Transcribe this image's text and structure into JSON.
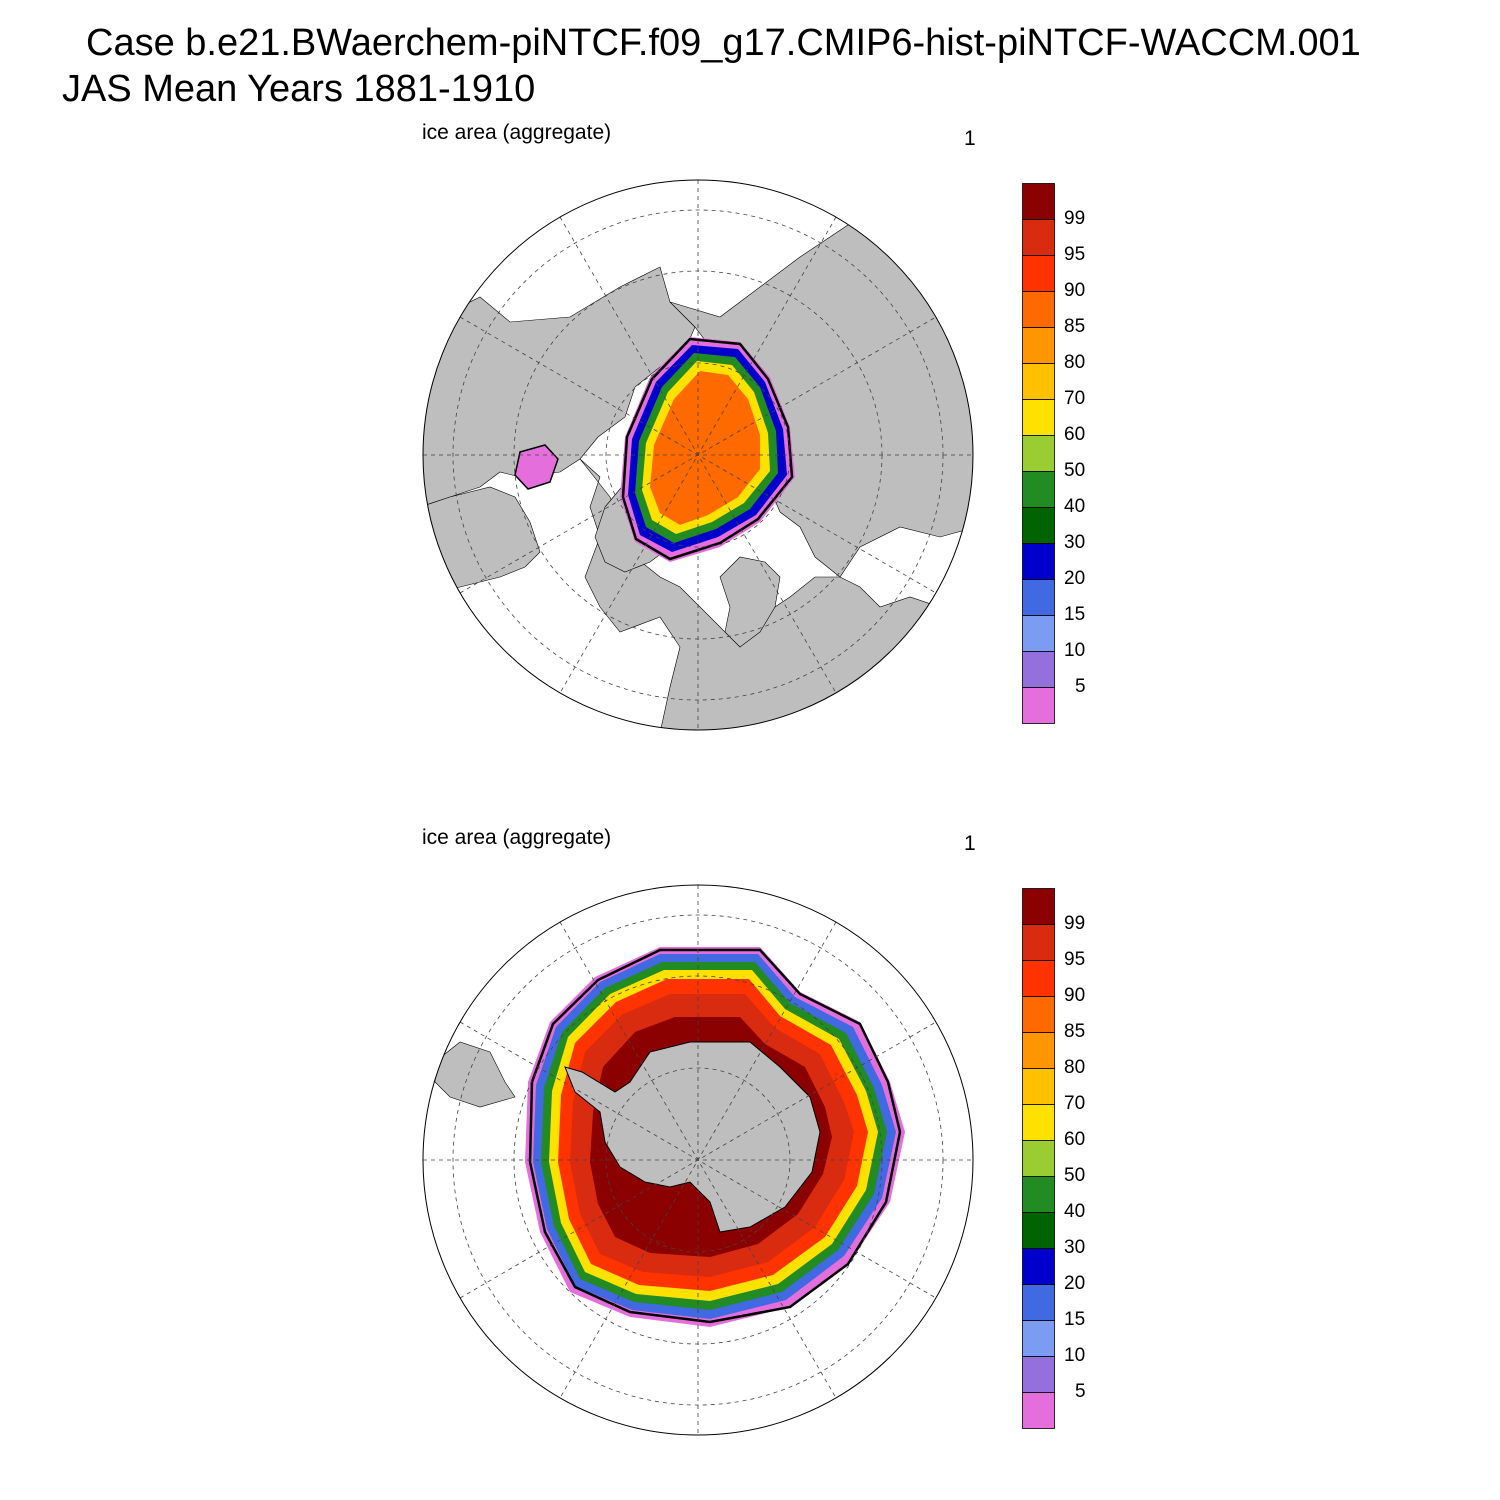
{
  "header": {
    "title_line1": "Case b.e21.BWaerchem-piNTCF.f09_g17.CMIP6-hist-piNTCF-WACCM.001",
    "title_line2": "JAS Mean   Years 1881-1910"
  },
  "colors": {
    "land": "#bebebe",
    "ocean": "#ffffff",
    "contour_line": "#000000",
    "colorbar": [
      "#e36edc",
      "#9370db",
      "#7b9cf0",
      "#4169e1",
      "#0000cd",
      "#006400",
      "#228b22",
      "#9acd32",
      "#ffe100",
      "#ffc000",
      "#ff9500",
      "#ff6a00",
      "#ff3300",
      "#d92b0f",
      "#8b0000"
    ]
  },
  "panels": [
    {
      "id": "north",
      "title": "ice area  (aggregate)",
      "number": "1",
      "hemisphere": "Northern",
      "colorbar_levels": [
        "5",
        "10",
        "15",
        "20",
        "30",
        "40",
        "50",
        "60",
        "70",
        "80",
        "85",
        "90",
        "95",
        "99"
      ]
    },
    {
      "id": "south",
      "title": "ice area  (aggregate)",
      "number": "1",
      "hemisphere": "Southern",
      "colorbar_levels": [
        "5",
        "10",
        "15",
        "20",
        "30",
        "40",
        "50",
        "60",
        "70",
        "80",
        "85",
        "90",
        "95",
        "99"
      ]
    }
  ]
}
